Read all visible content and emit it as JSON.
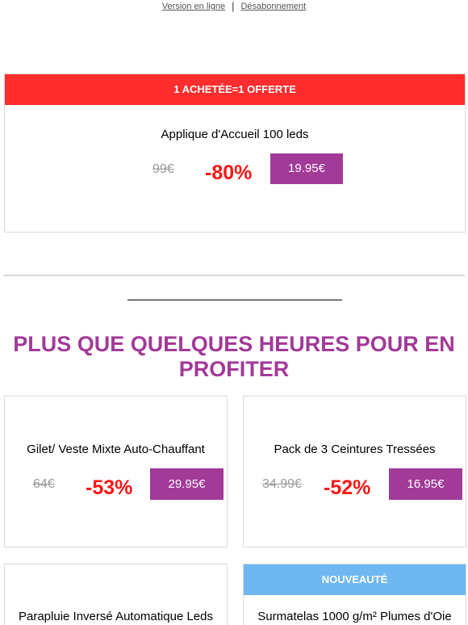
{
  "topbar": {
    "online": "Version en ligne",
    "separator": "|",
    "unsubscribe": "Désabonnement"
  },
  "promo": {
    "banner": "1 ACHETÉE=1 OFFERTE",
    "title": "Applique d'Accueil 100 leds",
    "old_price": "99€",
    "discount": "-80%",
    "price": "19.95€"
  },
  "headline": "PLUS QUE QUELQUES HEURES POUR EN PROFITER",
  "products": [
    {
      "title": "Gilet/ Veste Mixte Auto-Chauffant",
      "old_price": "64€",
      "discount": "-53%",
      "price": "29.95€"
    },
    {
      "title": "Pack de 3 Ceintures Tressées",
      "old_price": "34.99€",
      "discount": "-52%",
      "price": "16.95€"
    },
    {
      "title": "Parapluie Inversé Automatique Leds"
    },
    {
      "banner": "NOUVEAUTÉ",
      "title": "Surmatelas 1000 g/m² Plumes d'Oie"
    }
  ],
  "colors": {
    "banner_red": "#ff2d2d",
    "banner_blue": "#6fb7f0",
    "accent_purple": "#a23a98",
    "discount_red": "#ff1414"
  }
}
